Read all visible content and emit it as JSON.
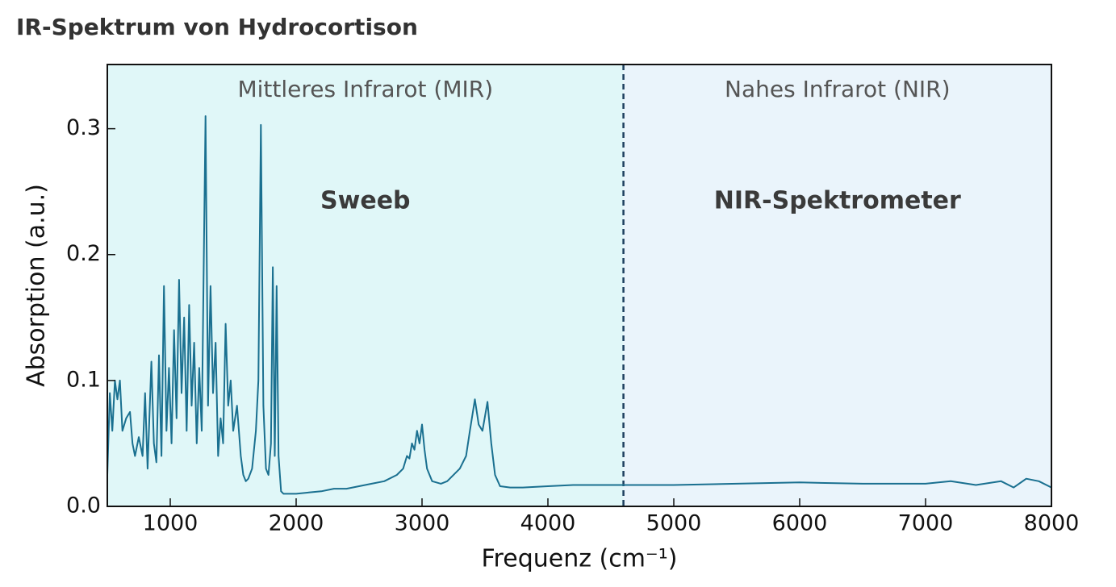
{
  "chart_data": {
    "type": "line",
    "title": "IR-Spektrum von Hydrocortison",
    "xlabel": "Frequenz (cm⁻¹)",
    "ylabel": "Absorption (a.u.)",
    "annotations": [
      {
        "text": "Mittleres Infrarot (MIR)",
        "x": 2550
      },
      {
        "text": "Nahes Infrarot (NIR)",
        "x": 6300
      },
      {
        "text": "Sweeb",
        "x": 2550
      },
      {
        "text": "NIR-Spektrometer",
        "x": 6300
      }
    ],
    "regions": [
      {
        "from": 500,
        "to": 4600,
        "color": "#e0f7f8"
      },
      {
        "from": 4600,
        "to": 8000,
        "color": "#eaf4fb"
      }
    ],
    "divider": 4600,
    "xlim": [
      500,
      8000
    ],
    "ylim": [
      0,
      0.351
    ],
    "xticks": [
      1000,
      2000,
      3000,
      4000,
      5000,
      6000,
      7000,
      8000
    ],
    "yticks": [
      {
        "value": 0,
        "label": "0.0"
      },
      0.1,
      0.2,
      0.3
    ],
    "series": [
      {
        "name": "Hydrocortison",
        "color": "#1a7090",
        "x": [
          500,
          520,
          540,
          560,
          580,
          600,
          620,
          650,
          680,
          700,
          720,
          750,
          780,
          800,
          820,
          850,
          870,
          890,
          910,
          930,
          950,
          970,
          990,
          1010,
          1030,
          1050,
          1070,
          1090,
          1110,
          1130,
          1150,
          1170,
          1190,
          1210,
          1230,
          1250,
          1280,
          1300,
          1320,
          1340,
          1360,
          1380,
          1400,
          1420,
          1440,
          1460,
          1480,
          1500,
          1530,
          1560,
          1580,
          1600,
          1620,
          1650,
          1680,
          1700,
          1720,
          1740,
          1760,
          1780,
          1800,
          1815,
          1830,
          1845,
          1860,
          1880,
          1900,
          2000,
          2100,
          2200,
          2300,
          2400,
          2500,
          2600,
          2700,
          2800,
          2850,
          2880,
          2900,
          2920,
          2940,
          2960,
          2980,
          3000,
          3020,
          3040,
          3080,
          3150,
          3200,
          3300,
          3350,
          3380,
          3420,
          3450,
          3480,
          3520,
          3550,
          3580,
          3620,
          3700,
          3800,
          4000,
          4200,
          4400,
          4600,
          5000,
          5500,
          6000,
          6500,
          7000,
          7200,
          7400,
          7600,
          7700,
          7800,
          7900,
          8000
        ],
        "values": [
          0.025,
          0.09,
          0.06,
          0.1,
          0.085,
          0.1,
          0.06,
          0.07,
          0.075,
          0.05,
          0.04,
          0.055,
          0.04,
          0.09,
          0.03,
          0.115,
          0.05,
          0.035,
          0.12,
          0.04,
          0.175,
          0.06,
          0.11,
          0.05,
          0.14,
          0.07,
          0.18,
          0.09,
          0.15,
          0.06,
          0.16,
          0.08,
          0.13,
          0.05,
          0.11,
          0.06,
          0.31,
          0.08,
          0.175,
          0.09,
          0.13,
          0.04,
          0.07,
          0.05,
          0.145,
          0.08,
          0.1,
          0.06,
          0.08,
          0.04,
          0.025,
          0.02,
          0.022,
          0.03,
          0.06,
          0.1,
          0.303,
          0.08,
          0.03,
          0.025,
          0.05,
          0.19,
          0.04,
          0.175,
          0.04,
          0.012,
          0.01,
          0.01,
          0.011,
          0.012,
          0.014,
          0.014,
          0.016,
          0.018,
          0.02,
          0.025,
          0.03,
          0.04,
          0.038,
          0.05,
          0.045,
          0.06,
          0.05,
          0.065,
          0.045,
          0.03,
          0.02,
          0.018,
          0.02,
          0.03,
          0.04,
          0.06,
          0.085,
          0.065,
          0.06,
          0.083,
          0.05,
          0.025,
          0.016,
          0.015,
          0.015,
          0.016,
          0.017,
          0.017,
          0.017,
          0.017,
          0.018,
          0.019,
          0.018,
          0.018,
          0.02,
          0.017,
          0.02,
          0.015,
          0.022,
          0.02,
          0.015
        ]
      }
    ]
  }
}
